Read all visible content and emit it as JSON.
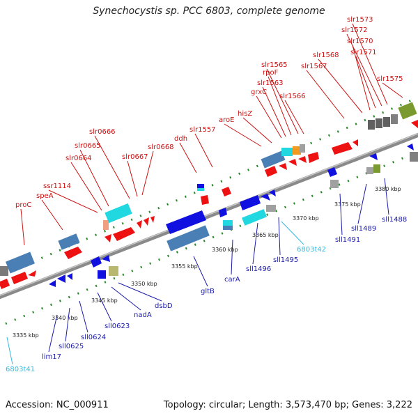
{
  "title": "Synechocystis sp. PCC 6803, complete genome",
  "footer": {
    "accession": "Accession: NC_000911",
    "topology": "Topology: circular; Length: 3,573,470 bp; Genes: 3,222"
  },
  "colors": {
    "upper_label": "#cc1111",
    "lower_label": "#1a1aaa",
    "rna_label": "#33bbdd",
    "backbone": "#8a8a8a",
    "tick": "#2a8a2a",
    "forward_gene": "#ee1111",
    "reverse_gene": "#1010e0",
    "operon_blue": "#4a7fb5",
    "rna_gene": "#22d8e0",
    "misc_orange": "#f29a20",
    "misc_gray": "#a0a0a0",
    "misc_olive": "#7a9a30"
  },
  "scale_labels": [
    "3335 kbp",
    "3340 kbp",
    "3345 kbp",
    "3350 kbp",
    "3355 kbp",
    "3360 kbp",
    "3365 kbp",
    "3370 kbp",
    "3375 kbp",
    "3380 kbp"
  ],
  "upper_genes": [
    "proC",
    "speA",
    "ssr1114",
    "slr0664",
    "slr0665",
    "slr0666",
    "slr0667",
    "slr0668",
    "ddh",
    "slr1557",
    "aroE",
    "hisZ",
    "grxC",
    "slr1563",
    "rpoF",
    "slr1565",
    "slr1566",
    "slr1567",
    "slr1568",
    "slr1570",
    "slr1571",
    "slr1572",
    "slr1573",
    "slr1575"
  ],
  "lower_genes": [
    "lim17",
    "sll0625",
    "sll0624",
    "sll0623",
    "nadA",
    "dsbD",
    "gltB",
    "carA",
    "sll1496",
    "sll1495",
    "sll1491",
    "sll1489",
    "sll1488"
  ],
  "rna_genes": [
    "6803t41",
    "6803t42"
  ]
}
